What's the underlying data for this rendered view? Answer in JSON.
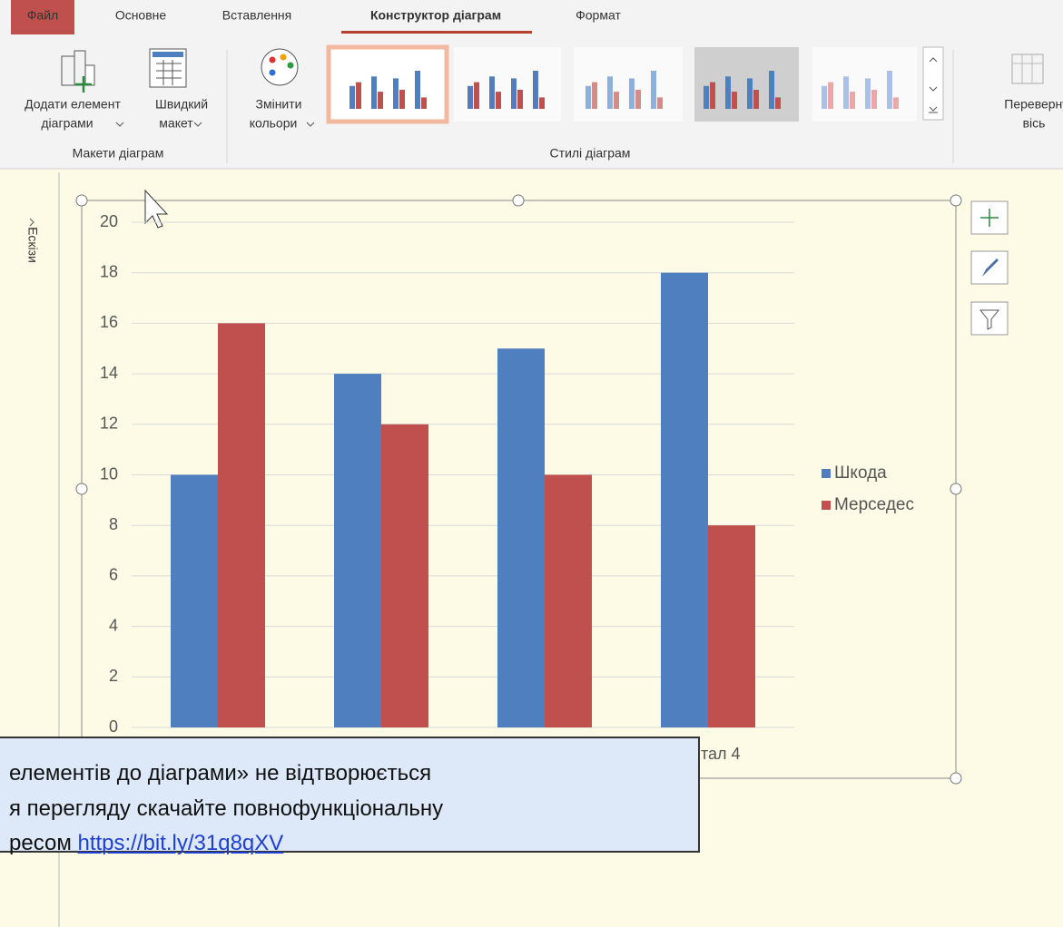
{
  "ribbon": {
    "tabs": [
      "Файл",
      "Основне",
      "Вставлення",
      "Конструктор діаграм",
      "Формат"
    ],
    "add_element": [
      "Додати елемент",
      "діаграми"
    ],
    "quick_layout": [
      "Швидкий",
      "макет"
    ],
    "change_colors": [
      "Змінити",
      "кольори"
    ],
    "switch_axis": [
      "Перевернут",
      "вісь"
    ],
    "groups": [
      "Макети діаграм",
      "Стилі діаграм"
    ]
  },
  "side_pane": "Ескізи",
  "chart_data": {
    "type": "bar",
    "categories": [
      null,
      null,
      null,
      "тал 4"
    ],
    "series": [
      {
        "name": "Шкода",
        "color": "#4f7fbf",
        "values": [
          10,
          14,
          15,
          18
        ]
      },
      {
        "name": "Мерседес",
        "color": "#c0504d",
        "values": [
          16,
          12,
          10,
          8
        ]
      }
    ],
    "ylim": [
      0,
      20
    ],
    "yticks": [
      0,
      2,
      4,
      6,
      8,
      10,
      12,
      14,
      16,
      18,
      20
    ],
    "grid": true,
    "legend": "right"
  },
  "notice": {
    "lines": [
      "елементів до діаграми» не відтворюється",
      "я перегляду скачайте повнофункціональну",
      "ресом"
    ],
    "link": "https://bit.ly/31q8qXV"
  }
}
